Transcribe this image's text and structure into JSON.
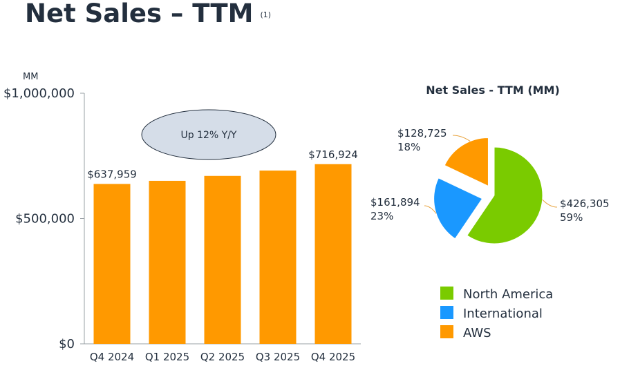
{
  "page": {
    "title": "Net Sales – TTM",
    "footnote": "(1)"
  },
  "colors": {
    "bar": "#ff9900",
    "north_america": "#7acb00",
    "international": "#1a98ff",
    "aws": "#ff9900",
    "callout_fill": "#d5dde8",
    "callout_stroke": "#232f3e",
    "axis": "#9aa0a6",
    "leader": "#e8a33d"
  },
  "chart_data": [
    {
      "type": "bar",
      "unit_label": "MM",
      "categories": [
        "Q4 2024",
        "Q1 2025",
        "Q2 2025",
        "Q3 2025",
        "Q4 2025"
      ],
      "values": [
        637959,
        650313,
        670038,
        691330,
        716924
      ],
      "data_labels": [
        "$637,959",
        "",
        "",
        "",
        "$716,924"
      ],
      "yticks": [
        "$0",
        "$500,000",
        "$1,000,000"
      ],
      "ylim": [
        0,
        1000000
      ],
      "annotation": "Up 12% Y/Y",
      "grid": false
    },
    {
      "type": "pie",
      "title": "Net Sales - TTM (MM)",
      "slices": [
        {
          "name": "North America",
          "value": 426305,
          "value_label": "$426,305",
          "pct_label": "59%",
          "color": "#7acb00"
        },
        {
          "name": "International",
          "value": 161894,
          "value_label": "$161,894",
          "pct_label": "23%",
          "color": "#1a98ff"
        },
        {
          "name": "AWS",
          "value": 128725,
          "value_label": "$128,725",
          "pct_label": "18%",
          "color": "#ff9900"
        }
      ],
      "legend": [
        "North America",
        "International",
        "AWS"
      ],
      "legend_position": "bottom"
    }
  ]
}
